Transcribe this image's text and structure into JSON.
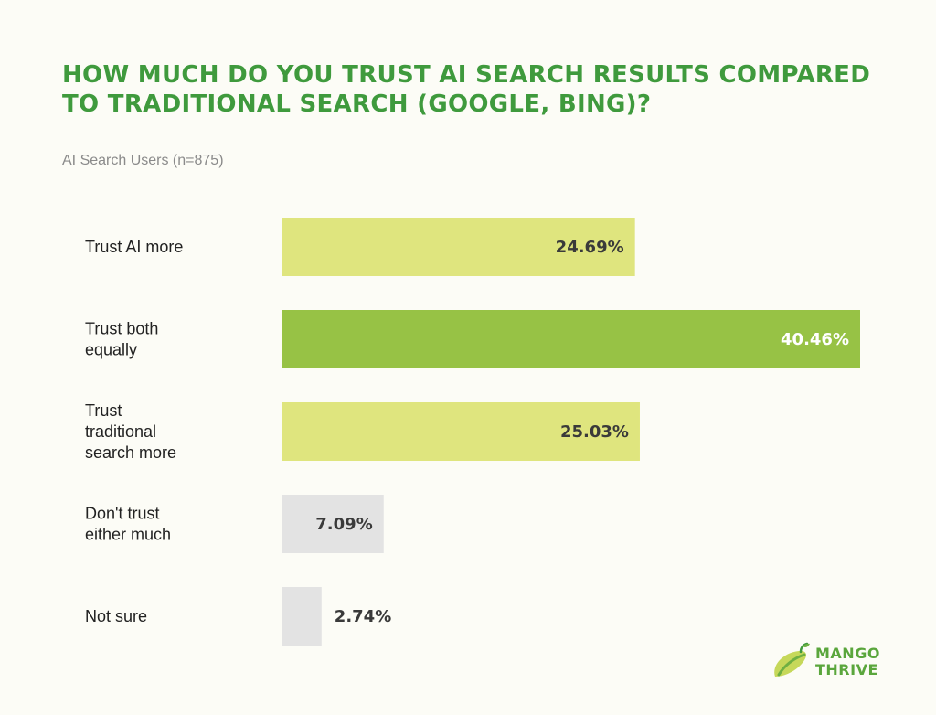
{
  "chart_data": {
    "type": "bar",
    "orientation": "horizontal",
    "title": "HOW MUCH DO YOU TRUST AI SEARCH RESULTS COMPARED TO TRADITIONAL SEARCH (GOOGLE, BING)?",
    "subtitle": "AI Search Users (n=875)",
    "categories": [
      [
        "Trust AI more"
      ],
      [
        "Trust both",
        "equally"
      ],
      [
        "Trust",
        "traditional",
        "search more"
      ],
      [
        "Don't trust",
        "either much"
      ],
      [
        "Not sure"
      ]
    ],
    "values": [
      24.69,
      40.46,
      25.03,
      7.09,
      2.74
    ],
    "value_labels": [
      "24.69%",
      "40.46%",
      "25.03%",
      "7.09%",
      "2.74%"
    ],
    "colors": [
      "#dfe57e",
      "#97c245",
      "#dfe57e",
      "#e3e3e3",
      "#e3e3e3"
    ],
    "value_label_colors": [
      "#3a3a3a",
      "#ffffff",
      "#3a3a3a",
      "#3a3a3a",
      "#3a3a3a"
    ],
    "xlim": [
      0,
      40.46
    ],
    "grid": false,
    "legend": "none"
  },
  "logo": {
    "line1": "MANGO",
    "line2": "THRIVE",
    "icon": "mango-leaf-icon"
  },
  "colors": {
    "title": "#3f9a3d",
    "background": "#fcfcf6",
    "logo": "#5aa63c"
  }
}
